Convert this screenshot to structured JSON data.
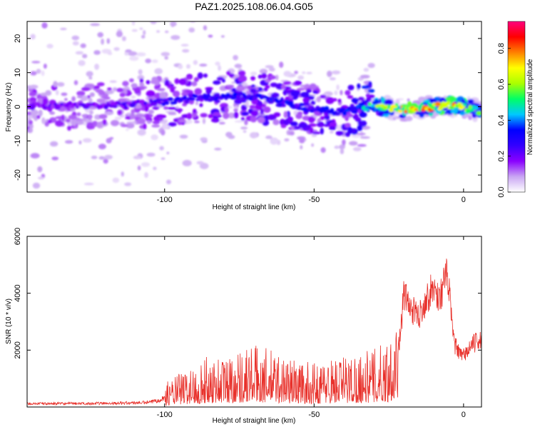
{
  "chart_data": [
    {
      "type": "heatmap",
      "title": "PAZ1.2025.108.06.04.G05",
      "xlabel": "Height of straight line (km)",
      "ylabel": "Frequency (Hz)",
      "xlim": [
        -146,
        6
      ],
      "ylim": [
        -25,
        25
      ],
      "xticks": [
        -100,
        -50,
        0
      ],
      "yticks": [
        -20,
        -10,
        0,
        10,
        20
      ],
      "colorbar": {
        "label": "Normalized spectral amplitude",
        "range": [
          0.0,
          0.95
        ],
        "ticks": [
          0.0,
          0.2,
          0.4,
          0.6,
          0.8
        ],
        "colors": [
          "#ffffff",
          "#c9a5f3",
          "#8a00ff",
          "#3300ff",
          "#0000ff",
          "#00c8ff",
          "#00ff66",
          "#aaff00",
          "#ffff00",
          "#ff8000",
          "#ff0000",
          "#ff007f"
        ]
      },
      "ridge": {
        "x": [
          -146,
          -130,
          -115,
          -100,
          -90,
          -80,
          -70,
          -60,
          -50,
          -40,
          -30,
          -20,
          -10,
          -5,
          0,
          6
        ],
        "y": [
          0,
          0.5,
          0.5,
          1.5,
          2.5,
          3,
          3,
          1,
          -1,
          -1.5,
          0.5,
          -1,
          0,
          0.5,
          0,
          -1.5
        ],
        "amplitude": [
          0.2,
          0.2,
          0.2,
          0.25,
          0.3,
          0.3,
          0.3,
          0.3,
          0.3,
          0.3,
          0.5,
          0.7,
          0.7,
          0.75,
          0.7,
          0.45
        ]
      }
    },
    {
      "type": "line",
      "xlabel": "Height of straight line (km)",
      "ylabel": "SNR (10 * v/v)",
      "xlim": [
        -146,
        6
      ],
      "ylim": [
        0,
        6000
      ],
      "xticks": [
        -100,
        -50,
        0
      ],
      "yticks": [
        2000,
        4000,
        6000
      ],
      "color": "#e8302a",
      "x": [
        -146,
        -130,
        -115,
        -105,
        -100,
        -95,
        -90,
        -85,
        -80,
        -75,
        -70,
        -65,
        -60,
        -55,
        -50,
        -45,
        -40,
        -35,
        -30,
        -25,
        -22,
        -21,
        -20,
        -18,
        -15,
        -12,
        -10,
        -8,
        -6,
        -5,
        -4,
        -3,
        -1,
        0,
        3,
        6
      ],
      "y": [
        150,
        150,
        170,
        200,
        400,
        600,
        700,
        900,
        900,
        1000,
        1100,
        1000,
        900,
        800,
        750,
        850,
        900,
        950,
        1000,
        1200,
        1900,
        2700,
        4000,
        3500,
        3200,
        3900,
        4200,
        3800,
        4600,
        4400,
        3000,
        2200,
        1800,
        1800,
        2200,
        2400
      ]
    }
  ]
}
